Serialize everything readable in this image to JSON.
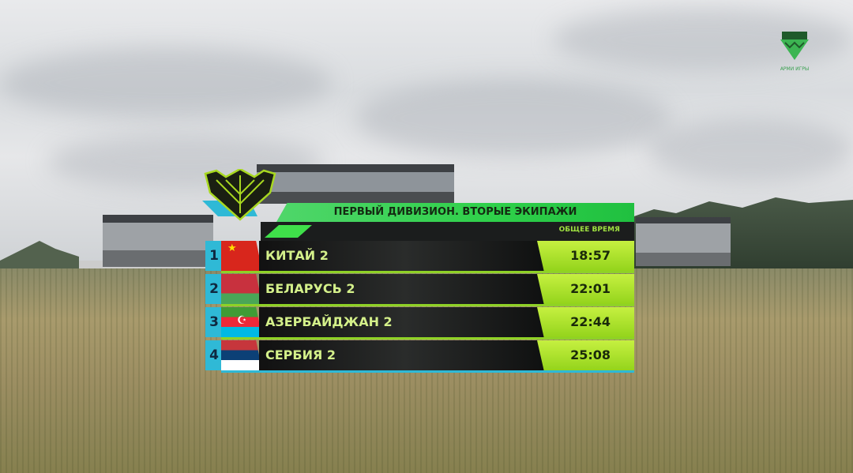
{
  "broadcast": {
    "logo_text": "АРМИ ИГРЫ"
  },
  "standings": {
    "title": "ПЕРВЫЙ ДИВИЗИОН. ВТОРЫЕ ЭКИПАЖИ",
    "column_header": "ОБЩЕЕ ВРЕМЯ",
    "rows": [
      {
        "rank": "1",
        "team": "КИТАЙ 2",
        "time": "18:57",
        "flag": "china"
      },
      {
        "rank": "2",
        "team": "БЕЛАРУСЬ 2",
        "time": "22:01",
        "flag": "belarus"
      },
      {
        "rank": "3",
        "team": "АЗЕРБАЙДЖАН 2",
        "time": "22:44",
        "flag": "azerbaijan"
      },
      {
        "rank": "4",
        "team": "СЕРБИЯ 2",
        "time": "25:08",
        "flag": "serbia"
      }
    ],
    "colors": {
      "accent_green": "#3fe04a",
      "time_green": "#b4e830",
      "rank_cyan": "#2fb9d6"
    }
  }
}
